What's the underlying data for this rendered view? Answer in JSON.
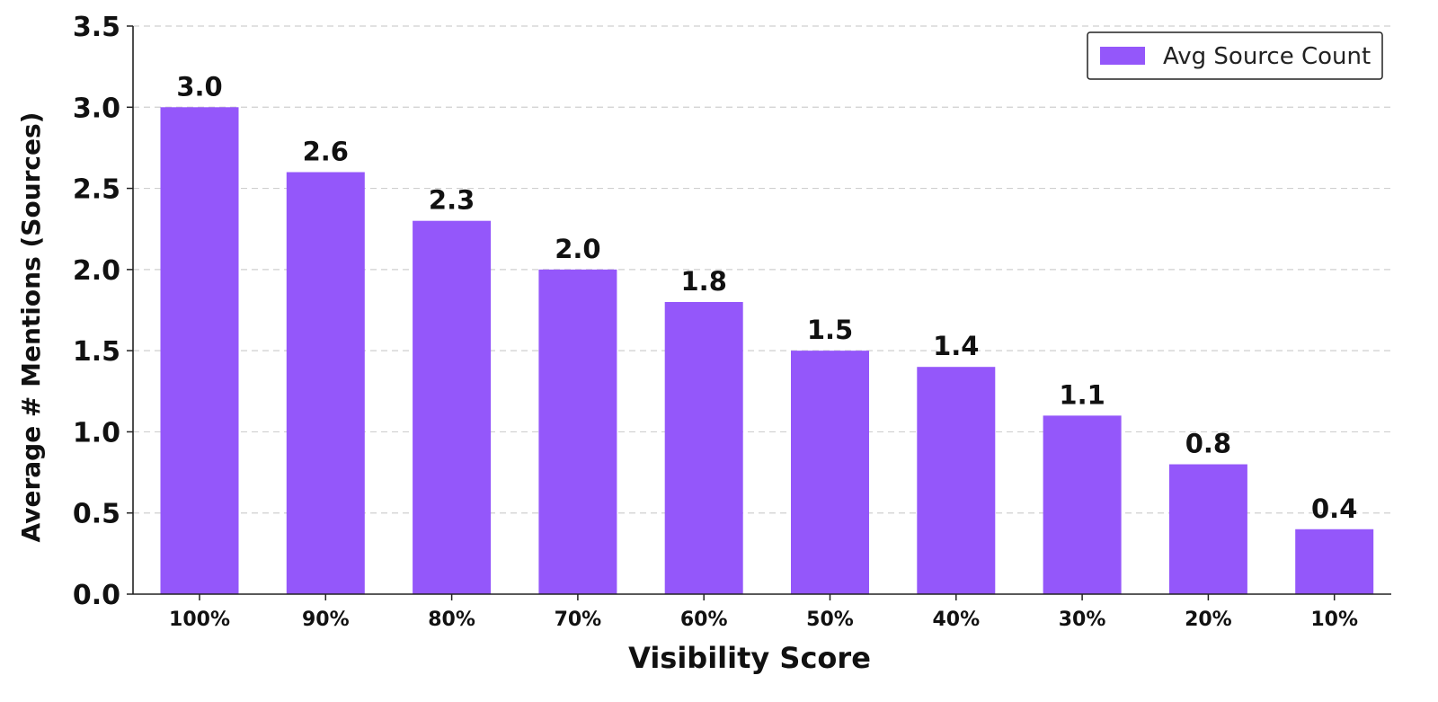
{
  "chart_data": {
    "type": "bar",
    "title": "",
    "xlabel": "Visibility Score",
    "ylabel": "Average # Mentions (Sources)",
    "categories": [
      "100%",
      "90%",
      "80%",
      "70%",
      "60%",
      "50%",
      "40%",
      "30%",
      "20%",
      "10%"
    ],
    "series": [
      {
        "name": "Avg Source Count",
        "values": [
          3.0,
          2.6,
          2.3,
          2.0,
          1.8,
          1.5,
          1.4,
          1.1,
          0.8,
          0.4
        ],
        "labels": [
          "3.0",
          "2.6",
          "2.3",
          "2.0",
          "1.8",
          "1.5",
          "1.4",
          "1.1",
          "0.8",
          "0.4"
        ],
        "color": "#9457FA"
      }
    ],
    "ylim": [
      0,
      3.5
    ],
    "yticks": [
      "0.0",
      "0.5",
      "1.0",
      "1.5",
      "2.0",
      "2.5",
      "3.0",
      "3.5"
    ],
    "grid": "y-dashed",
    "legend_position": "top-right"
  }
}
